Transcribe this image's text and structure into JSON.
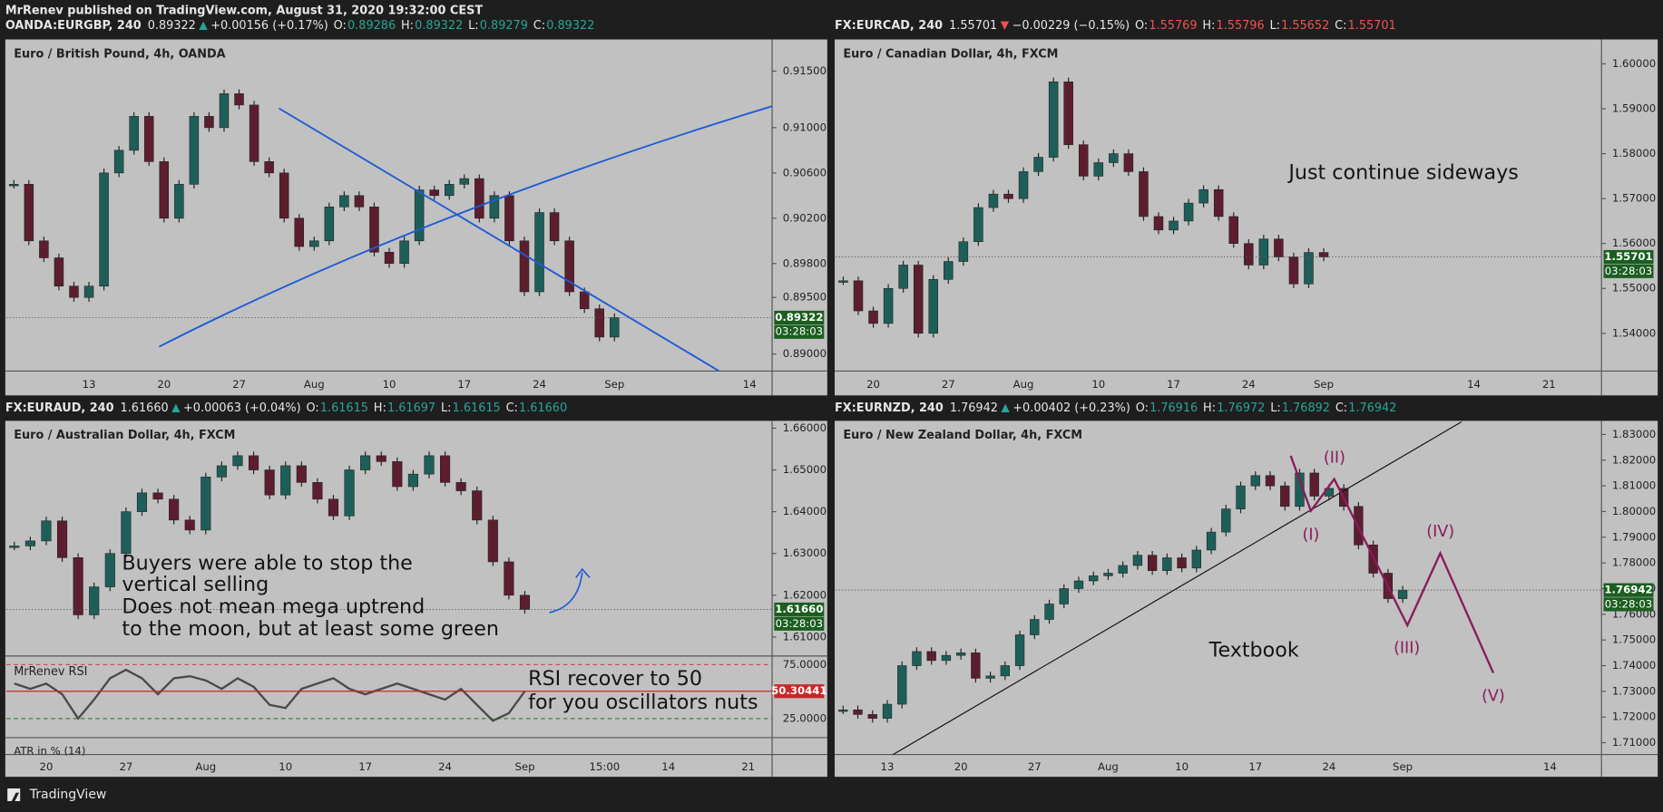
{
  "header": {
    "published": "MrRenev published on TradingView.com, August 31, 2020 19:32:00 CEST"
  },
  "footer": {
    "brand": "TradingView"
  },
  "chart_data": [
    {
      "type": "candlestick",
      "title": "Euro / British Pound, 4h, OANDA",
      "quote": {
        "symbol": "OANDA:EURGBP, 240",
        "last": "0.89322",
        "change": "+0.00156 (+0.17%)",
        "direction": "up",
        "ohlc": [
          {
            "label": "O:",
            "value": "0.89286"
          },
          {
            "label": "H:",
            "value": "0.89322"
          },
          {
            "label": "L:",
            "value": "0.89279"
          },
          {
            "label": "C:",
            "value": "0.89322"
          }
        ]
      },
      "countdown": "03:28:03",
      "categories": [
        null,
        null,
        null,
        null,
        null,
        "13",
        null,
        null,
        null,
        null,
        "20",
        null,
        null,
        null,
        null,
        "27",
        null,
        null,
        null,
        null,
        "Aug",
        null,
        null,
        null,
        null,
        "10",
        null,
        null,
        null,
        null,
        "17",
        null,
        null,
        null,
        null,
        "24",
        null,
        null,
        null,
        null,
        "Sep",
        null,
        null,
        null,
        null,
        null,
        null,
        null,
        null,
        "14",
        null
      ],
      "values": [
        0.905,
        0.9,
        0.8985,
        0.896,
        0.895,
        0.896,
        0.906,
        0.908,
        0.911,
        0.907,
        0.902,
        0.905,
        0.911,
        0.91,
        0.913,
        0.912,
        0.907,
        0.906,
        0.902,
        0.8995,
        0.9,
        0.903,
        0.904,
        0.903,
        0.899,
        0.898,
        0.9,
        0.9045,
        0.904,
        0.905,
        0.9055,
        0.902,
        0.904,
        0.9,
        0.8955,
        0.9025,
        0.9,
        0.8955,
        0.894,
        0.8915,
        0.89322,
        null,
        null,
        null,
        null,
        null,
        null,
        null,
        null,
        null,
        null
      ],
      "ylim": [
        0.8885,
        0.9177
      ],
      "yticks": [
        {
          "value": 0.915,
          "label": "0.91500"
        },
        {
          "value": 0.91,
          "label": "0.91000"
        },
        {
          "value": 0.906,
          "label": "0.90600"
        },
        {
          "value": 0.902,
          "label": "0.90200"
        },
        {
          "value": 0.898,
          "label": "0.89800"
        },
        {
          "value": 0.895,
          "label": "0.89500"
        },
        {
          "value": 0.89,
          "label": "0.89000"
        }
      ],
      "colors": {
        "up": "#1d5f58",
        "down": "#5c1e2e",
        "price_line": "#1b5e20"
      }
    },
    {
      "type": "candlestick",
      "title": "Euro / Canadian Dollar, 4h, FXCM",
      "quote": {
        "symbol": "FX:EURCAD, 240",
        "last": "1.55701",
        "change": "−0.00229 (−0.15%)",
        "direction": "down",
        "ohlc": [
          {
            "label": "O:",
            "value": "1.55769"
          },
          {
            "label": "H:",
            "value": "1.55796"
          },
          {
            "label": "L:",
            "value": "1.55652"
          },
          {
            "label": "C:",
            "value": "1.55701"
          }
        ]
      },
      "countdown": "03:28:03",
      "annotation": "Just continue sideways",
      "categories": [
        null,
        null,
        "20",
        null,
        null,
        null,
        null,
        "27",
        null,
        null,
        null,
        null,
        "Aug",
        null,
        null,
        null,
        null,
        "10",
        null,
        null,
        null,
        null,
        "17",
        null,
        null,
        null,
        null,
        "24",
        null,
        null,
        null,
        null,
        "Sep",
        null,
        null,
        null,
        null,
        null,
        null,
        null,
        null,
        null,
        "14",
        null,
        null,
        null,
        null,
        "21",
        null,
        null,
        null
      ],
      "values": [
        1.5517,
        1.545,
        1.5422,
        1.55,
        1.5552,
        1.54,
        1.552,
        1.556,
        1.5604,
        1.568,
        1.571,
        1.57,
        1.576,
        1.5792,
        1.596,
        1.582,
        1.575,
        1.578,
        1.58,
        1.576,
        1.566,
        1.563,
        1.565,
        1.569,
        1.572,
        1.566,
        1.56,
        1.5552,
        1.561,
        1.557,
        1.551,
        1.558,
        1.55701,
        null,
        null,
        null,
        null,
        null,
        null,
        null,
        null,
        null,
        null,
        null,
        null,
        null,
        null,
        null,
        null,
        null,
        null
      ],
      "ylim": [
        1.5316,
        1.6052
      ],
      "yticks": [
        {
          "value": 1.6,
          "label": "1.60000"
        },
        {
          "value": 1.59,
          "label": "1.59000"
        },
        {
          "value": 1.58,
          "label": "1.58000"
        },
        {
          "value": 1.57,
          "label": "1.57000"
        },
        {
          "value": 1.56,
          "label": "1.56000"
        },
        {
          "value": 1.55,
          "label": "1.55000"
        },
        {
          "value": 1.54,
          "label": "1.54000"
        }
      ],
      "colors": {
        "up": "#1d5f58",
        "down": "#5c1e2e",
        "price_line": "#1b5e20"
      }
    },
    {
      "type": "candlestick",
      "title": "Euro / Australian Dollar, 4h, FXCM",
      "quote": {
        "symbol": "FX:EURAUD, 240",
        "last": "1.61660",
        "change": "+0.00063 (+0.04%)",
        "direction": "up",
        "ohlc": [
          {
            "label": "O:",
            "value": "1.61615"
          },
          {
            "label": "H:",
            "value": "1.61697"
          },
          {
            "label": "L:",
            "value": "1.61615"
          },
          {
            "label": "C:",
            "value": "1.61660"
          }
        ]
      },
      "countdown": "03:28:03",
      "annotations": [
        "Buyers were able to stop the",
        "vertical selling",
        "Does not mean mega uptrend",
        "to the moon, but at least some green"
      ],
      "categories": [
        null,
        null,
        "20",
        null,
        null,
        null,
        null,
        "27",
        null,
        null,
        null,
        null,
        "Aug",
        null,
        null,
        null,
        null,
        "10",
        null,
        null,
        null,
        null,
        "17",
        null,
        null,
        null,
        null,
        "24",
        null,
        null,
        null,
        null,
        "Sep",
        null,
        null,
        null,
        null,
        "15:00",
        null,
        null,
        null,
        "14",
        null,
        null,
        null,
        null,
        "21",
        null
      ],
      "values": [
        1.6318,
        1.633,
        1.6378,
        1.629,
        1.6153,
        1.622,
        1.63,
        1.64,
        1.6445,
        1.643,
        1.638,
        1.6356,
        1.6483,
        1.651,
        1.6534,
        1.65,
        1.644,
        1.651,
        1.647,
        1.643,
        1.639,
        1.65,
        1.6534,
        1.652,
        1.646,
        1.649,
        1.6534,
        1.647,
        1.645,
        1.638,
        1.628,
        1.62,
        1.6166,
        null,
        null,
        null,
        null,
        null,
        null,
        null,
        null,
        null,
        null,
        null,
        null,
        null,
        null,
        null
      ],
      "ylim": [
        1.6057,
        1.6615
      ],
      "yticks": [
        {
          "value": 1.66,
          "label": "1.66000"
        },
        {
          "value": 1.65,
          "label": "1.65000"
        },
        {
          "value": 1.64,
          "label": "1.64000"
        },
        {
          "value": 1.63,
          "label": "1.63000"
        },
        {
          "value": 1.62,
          "label": "1.62000"
        },
        {
          "value": 1.61,
          "label": "1.61000"
        }
      ],
      "colors": {
        "up": "#1d5f58",
        "down": "#5c1e2e",
        "price_line": "#1b5e20"
      }
    },
    {
      "type": "line",
      "title": "MrRenev RSI",
      "atr_label": "ATR in % (14)",
      "annotations": [
        "RSI recover to 50",
        "for you oscillators nuts"
      ],
      "values": [
        57.4,
        52.5,
        57.4,
        47.5,
        25,
        42.6,
        62.3,
        70.1,
        62.3,
        47.5,
        62.3,
        64.2,
        60.3,
        52.5,
        62.3,
        54.4,
        37.7,
        34.8,
        52.5,
        57.4,
        62.3,
        52.5,
        47.5,
        52.5,
        57.4,
        52.5,
        47.5,
        42.6,
        52.5,
        37.7,
        23,
        30,
        50.30441,
        null,
        null,
        null,
        null,
        null,
        null,
        null,
        null,
        null,
        null,
        null,
        null,
        null,
        null,
        null
      ],
      "ylim": [
        8.4,
        81.9
      ],
      "yticks": [
        {
          "value": 75,
          "label": "75.00000"
        },
        {
          "value": 25,
          "label": "25.00000"
        }
      ],
      "level_colors": [
        "#d04040",
        "#2e7d32"
      ],
      "colors": {
        "line": "#4a4a4a",
        "price_line": "#c62828"
      }
    },
    {
      "type": "candlestick",
      "title": "Euro / New Zealand Dollar, 4h, FXCM",
      "quote": {
        "symbol": "FX:EURNZD, 240",
        "last": "1.76942",
        "change": "+0.00402 (+0.23%)",
        "direction": "up",
        "ohlc": [
          {
            "label": "O:",
            "value": "1.76916"
          },
          {
            "label": "H:",
            "value": "1.76972"
          },
          {
            "label": "L:",
            "value": "1.76892"
          },
          {
            "label": "C:",
            "value": "1.76942"
          }
        ]
      },
      "countdown": "03:28:03",
      "annotation": "Textbook",
      "waves": [
        "(I)",
        "(II)",
        "(III)",
        "(IV)",
        "(V)"
      ],
      "categories": [
        null,
        null,
        null,
        "13",
        null,
        null,
        null,
        null,
        "20",
        null,
        null,
        null,
        null,
        "27",
        null,
        null,
        null,
        null,
        "Aug",
        null,
        null,
        null,
        null,
        "10",
        null,
        null,
        null,
        null,
        "17",
        null,
        null,
        null,
        null,
        "24",
        null,
        null,
        null,
        null,
        "Sep",
        null,
        null,
        null,
        null,
        null,
        null,
        null,
        null,
        null,
        "14",
        null,
        null,
        null
      ],
      "values": [
        1.7228,
        1.721,
        1.7195,
        1.725,
        1.74,
        1.7455,
        1.742,
        1.744,
        1.745,
        1.7351,
        1.736,
        1.74,
        1.752,
        1.758,
        1.764,
        1.77,
        1.773,
        1.775,
        1.776,
        1.779,
        1.783,
        1.777,
        1.782,
        1.778,
        1.785,
        1.792,
        1.801,
        1.81,
        1.814,
        1.81,
        1.802,
        1.815,
        1.806,
        1.809,
        1.802,
        1.787,
        1.776,
        1.7661,
        1.76942,
        null,
        null,
        null,
        null,
        null,
        null,
        null,
        null,
        null,
        null,
        null,
        null,
        null
      ],
      "ylim": [
        1.7054,
        1.8349
      ],
      "yticks": [
        {
          "value": 1.83,
          "label": "1.83000"
        },
        {
          "value": 1.82,
          "label": "1.82000"
        },
        {
          "value": 1.81,
          "label": "1.81000"
        },
        {
          "value": 1.8,
          "label": "1.80000"
        },
        {
          "value": 1.79,
          "label": "1.79000"
        },
        {
          "value": 1.78,
          "label": "1.78000"
        },
        {
          "value": 1.77,
          "label": "1.77000"
        },
        {
          "value": 1.76,
          "label": "1.76000"
        },
        {
          "value": 1.75,
          "label": "1.75000"
        },
        {
          "value": 1.74,
          "label": "1.74000"
        },
        {
          "value": 1.73,
          "label": "1.73000"
        },
        {
          "value": 1.72,
          "label": "1.72000"
        },
        {
          "value": 1.71,
          "label": "1.71000"
        }
      ],
      "colors": {
        "up": "#1d5f58",
        "down": "#5c1e2e",
        "price_line": "#1b5e20"
      }
    }
  ]
}
